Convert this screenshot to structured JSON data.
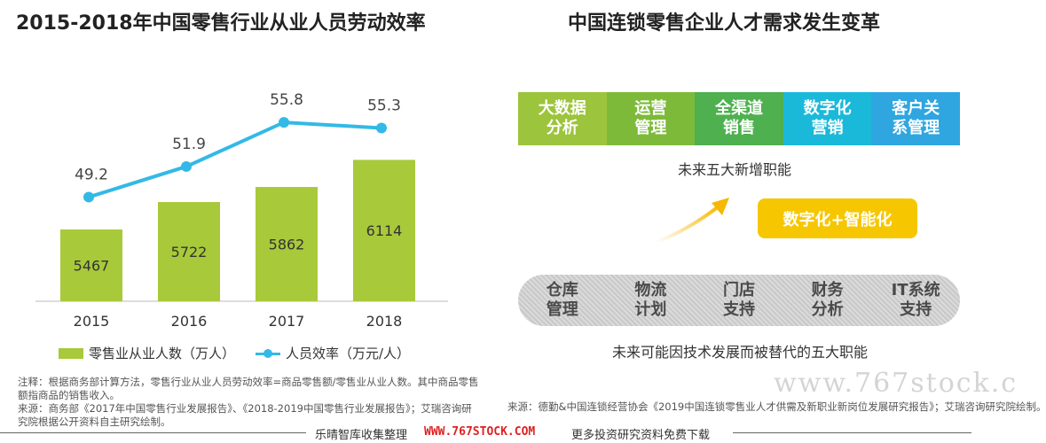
{
  "left_title": "2015-2018年中国零售行业从业人员劳动效率",
  "right_title": "中国连锁零售企业人才需求发生变革",
  "chart_data": {
    "type": "bar",
    "categories": [
      "2015",
      "2016",
      "2017",
      "2018"
    ],
    "series": [
      {
        "name": "零售业从业人数（万人）",
        "type": "bar",
        "values": [
          5467,
          5722,
          5862,
          6114
        ],
        "color": "#a8c93a"
      },
      {
        "name": "人员效率（万元/人）",
        "type": "line",
        "values": [
          49.2,
          51.9,
          55.8,
          55.3
        ],
        "color": "#33b9e6"
      }
    ],
    "bar_axis_range": [
      4800,
      6200
    ],
    "line_axis_range": [
      40,
      58
    ],
    "grid": false,
    "legend_position": "bottom"
  },
  "legend": {
    "bar_label": "零售业从业人数（万人）",
    "line_label": "人员效率（万元/人）"
  },
  "notes": {
    "note": "注释：根据商务部计算方法，零售行业从业人员劳动效率=商品零售额/零售业从业人数。其中商品零售额指商品的销售收入。",
    "source": "来源：商务部《2017年中国零售行业发展报告》、《2018-2019中国零售行业发展报告》；艾瑞咨询研究院根据公开资料自主研究绘制。"
  },
  "new_functions": {
    "items": [
      {
        "label": "大数据\n分析",
        "color": "#9cc43c"
      },
      {
        "label": "运营\n管理",
        "color": "#7dba3a"
      },
      {
        "label": "全渠道\n销售",
        "color": "#4fb04f"
      },
      {
        "label": "数字化\n营销",
        "color": "#1bb9d9"
      },
      {
        "label": "客户关\n系管理",
        "color": "#2fa6e0"
      }
    ],
    "caption": "未来五大新增职能"
  },
  "highlight": "数字化+智能化",
  "replaced_functions": {
    "items": [
      {
        "label": "仓库\n管理"
      },
      {
        "label": "物流\n计划"
      },
      {
        "label": "门店\n支持"
      },
      {
        "label": "财务\n分析"
      },
      {
        "label": "IT系统\n支持"
      }
    ],
    "caption": "未来可能因技术发展而被替代的五大职能"
  },
  "right_source": "来源：德勤&中国连锁经营协会《2019中国连锁零售业人才供需及新职业新岗位发展研究报告》；艾瑞咨询研究院绘制。",
  "footer": {
    "prefix": "乐晴智库收集整理",
    "website": "WWW.767STOCK.COM",
    "suffix": "更多投资研究资料免费下载"
  },
  "watermark": "www.767stock.c"
}
